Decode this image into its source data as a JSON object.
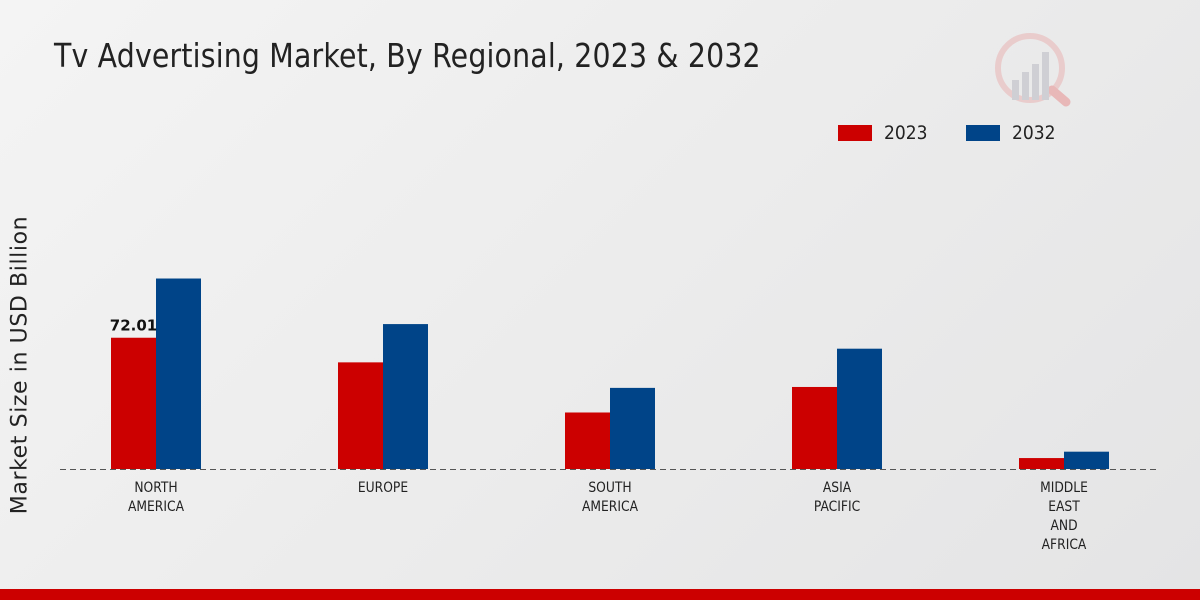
{
  "page": {
    "title": "Tv Advertising Market, By Regional, 2023 & 2032"
  },
  "legend": {
    "items": [
      {
        "label": "2023",
        "color": "#cc0000"
      },
      {
        "label": "2032",
        "color": "#004488"
      }
    ]
  },
  "chart_data": {
    "type": "bar",
    "title": "Tv Advertising Market, By Regional, 2023 & 2032",
    "xlabel": "",
    "ylabel": "Market Size in USD Billion",
    "categories": [
      "NORTH\nAMERICA",
      "EUROPE",
      "SOUTH\nAMERICA",
      "ASIA\nPACIFIC",
      "MIDDLE\nEAST\nAND\nAFRICA"
    ],
    "series": [
      {
        "name": "2023",
        "color": "#cc0000",
        "values": [
          72.01,
          58.5,
          31.0,
          45.0,
          6.0
        ]
      },
      {
        "name": "2032",
        "color": "#004488",
        "values": [
          104.5,
          79.5,
          44.5,
          66.0,
          9.5
        ]
      }
    ],
    "data_labels": [
      {
        "series": 0,
        "category": 0,
        "text": "72.01"
      }
    ],
    "ylim": [
      0,
      175
    ],
    "grid": false,
    "legend_position": "top-right"
  }
}
